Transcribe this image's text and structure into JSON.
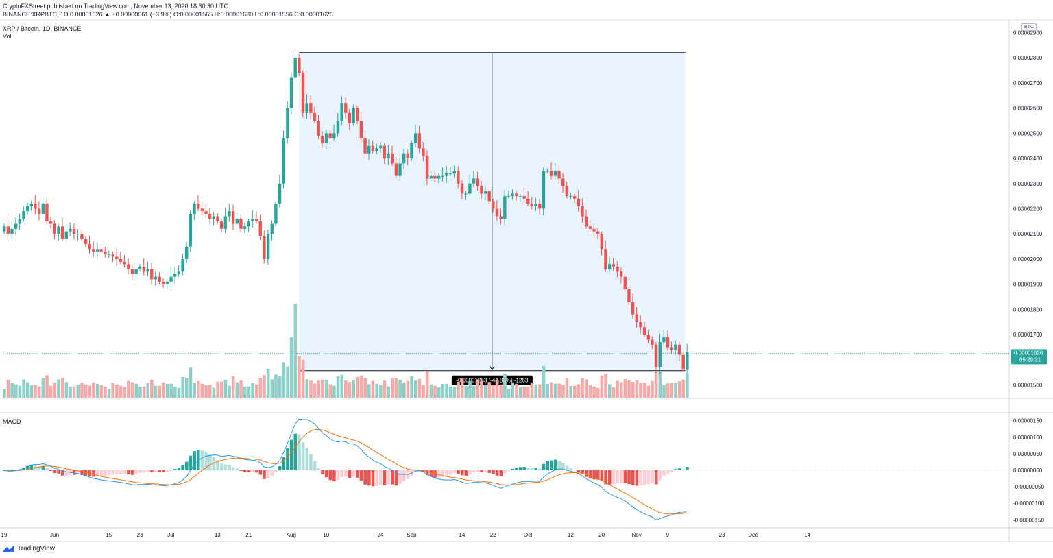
{
  "header": {
    "published": "CryptoFXStreet published on TradingView.com, November 13, 2020 18:30:30 UTC",
    "publisher": "CryptoFXStreet",
    "symbol_line": "BINANCE:XRPBTC, 1D 0.00001626 ▲ +0.00000061 (+3.9%) O:0.00001565 H:0.00001630 L:0.00001556 C:0.00001626",
    "title": "XRP / Bitcoin, 1D, BINANCE",
    "vol_label": "Vol",
    "macd_label": "MACD",
    "currency_badge": "BTC"
  },
  "footer": {
    "brand": "TradingView"
  },
  "measure_label": "-0.00001263 (-44.80%) -1263",
  "price_tag": {
    "price": "0.00001626",
    "countdown": "05:29:31"
  },
  "colors": {
    "up": "#26a69a",
    "down": "#ef5350",
    "vol_up": "#8dd0c9",
    "vol_down": "#f7a9a7",
    "range_fill": "#e3f0fc",
    "macd_line": "#2196f3",
    "signal_line": "#ff6d00",
    "hist_up_strong": "#26a69a",
    "hist_up_weak": "#b2dfdb",
    "hist_down_strong": "#ef5350",
    "hist_down_weak": "#ffcdd2"
  },
  "chart_data": {
    "type": "candlestick",
    "price_ticks": [
      "0.00002900",
      "0.00002800",
      "0.00002700",
      "0.00002600",
      "0.00002500",
      "0.00002400",
      "0.00002300",
      "0.00002200",
      "0.00002100",
      "0.00002000",
      "0.00001900",
      "0.00001800",
      "0.00001700",
      "0.00001600",
      "0.00001500"
    ],
    "price_ylim": [
      1.45e-05,
      2.95e-05
    ],
    "macd_ticks": [
      "0.00000150",
      "0.00000100",
      "0.00000050",
      "0.00000000",
      "-0.00000050",
      "-0.00000100",
      "-0.00000150"
    ],
    "macd_ylim": [
      -1.7e-06,
      1.7e-06
    ],
    "x_ticks": [
      "19",
      "Jun",
      "15",
      "23",
      "Jul",
      "13",
      "21",
      "Aug",
      "10",
      "24",
      "Sep",
      "14",
      "22",
      "Oct",
      "12",
      "20",
      "Nov",
      "9",
      "23",
      "Dec",
      "14"
    ],
    "x_tick_days": [
      0,
      13,
      27,
      35,
      43,
      55,
      63,
      74,
      83,
      97,
      105,
      118,
      126,
      135,
      146,
      154,
      163,
      171,
      185,
      193,
      207
    ],
    "first_day": "2020-05-19",
    "total_days": 219,
    "closes": [
      2.13e-05,
      2.1e-05,
      2.12e-05,
      2.14e-05,
      2.16e-05,
      2.19e-05,
      2.21e-05,
      2.22e-05,
      2.2e-05,
      2.18e-05,
      2.22e-05,
      2.15e-05,
      2.14e-05,
      2.1e-05,
      2.13e-05,
      2.08e-05,
      2.11e-05,
      2.12e-05,
      2.1e-05,
      2.1e-05,
      2.08e-05,
      2.06e-05,
      2.04e-05,
      2.03e-05,
      2.04e-05,
      2.03e-05,
      2.02e-05,
      2.02e-05,
      2.01e-05,
      2e-05,
      1.99e-05,
      1.98e-05,
      1.96e-05,
      1.94e-05,
      1.96e-05,
      1.97e-05,
      1.95e-05,
      1.96e-05,
      1.92e-05,
      1.93e-05,
      1.91e-05,
      1.9e-05,
      1.91e-05,
      1.93e-05,
      1.94e-05,
      1.95e-05,
      2e-05,
      2.05e-05,
      2.18e-05,
      2.22e-05,
      2.2e-05,
      2.19e-05,
      2.18e-05,
      2.16e-05,
      2.17e-05,
      2.15e-05,
      2.12e-05,
      2.17e-05,
      2.19e-05,
      2.14e-05,
      2.16e-05,
      2.12e-05,
      2.13e-05,
      2.15e-05,
      2.16e-05,
      2.15e-05,
      2.09e-05,
      2e-05,
      2.1e-05,
      2.14e-05,
      2.22e-05,
      2.3e-05,
      2.48e-05,
      2.6e-05,
      2.72e-05,
      2.8e-05,
      2.74e-05,
      2.58e-05,
      2.62e-05,
      2.58e-05,
      2.55e-05,
      2.49e-05,
      2.46e-05,
      2.5e-05,
      2.48e-05,
      2.5e-05,
      2.55e-05,
      2.62e-05,
      2.58e-05,
      2.54e-05,
      2.6e-05,
      2.55e-05,
      2.48e-05,
      2.42e-05,
      2.45e-05,
      2.43e-05,
      2.44e-05,
      2.45e-05,
      2.4e-05,
      2.42e-05,
      2.38e-05,
      2.33e-05,
      2.38e-05,
      2.42e-05,
      2.4e-05,
      2.46e-05,
      2.5e-05,
      2.44e-05,
      2.41e-05,
      2.32e-05,
      2.33e-05,
      2.32e-05,
      2.33e-05,
      2.33e-05,
      2.34e-05,
      2.34e-05,
      2.35e-05,
      2.3e-05,
      2.26e-05,
      2.26e-05,
      2.3e-05,
      2.32e-05,
      2.29e-05,
      2.26e-05,
      2.27e-05,
      2.23e-05,
      2.2e-05,
      2.17e-05,
      2.16e-05,
      2.25e-05,
      2.25e-05,
      2.26e-05,
      2.25e-05,
      2.25e-05,
      2.24e-05,
      2.22e-05,
      2.21e-05,
      2.22e-05,
      2.2e-05,
      2.35e-05,
      2.35e-05,
      2.33e-05,
      2.35e-05,
      2.32e-05,
      2.29e-05,
      2.25e-05,
      2.25e-05,
      2.24e-05,
      2.21e-05,
      2.17e-05,
      2.13e-05,
      2.12e-05,
      2.11e-05,
      2.1e-05,
      2.04e-05,
      1.96e-05,
      1.98e-05,
      1.97e-05,
      1.95e-05,
      1.93e-05,
      1.88e-05,
      1.83e-05,
      1.78e-05,
      1.75e-05,
      1.73e-05,
      1.7e-05,
      1.68e-05,
      1.66e-05,
      1.57e-05,
      1.67e-05,
      1.69e-05,
      1.65e-05,
      1.64e-05,
      1.66e-05,
      1.62e-05,
      1.56e-05,
      1.63e-05
    ],
    "measurement": {
      "start_day": 76,
      "end_day": 175,
      "high": 2.82e-05,
      "low": 1.557e-05,
      "change": "-0.00001263",
      "percent": "-44.80%"
    },
    "series": [
      {
        "name": "Vol",
        "type": "histogram"
      },
      {
        "name": "MACD",
        "type": "line"
      },
      {
        "name": "Signal",
        "type": "line"
      }
    ]
  }
}
